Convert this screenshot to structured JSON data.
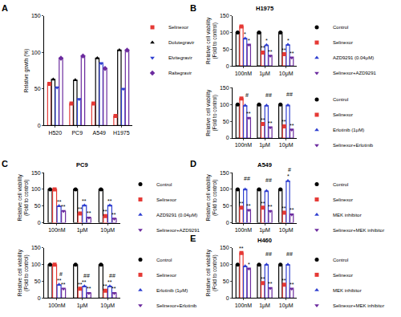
{
  "chart_data": [
    {
      "type": "bar",
      "panel": "A",
      "y_label": "Relative gowth (%)",
      "categories": [
        "H520",
        "PC9",
        "A549",
        "H1975"
      ],
      "ylim": [
        0,
        150
      ],
      "yticks": [
        0,
        50,
        100,
        150
      ],
      "grid": false,
      "series": [
        {
          "name": "Selinexor",
          "color": "#e53935",
          "marker": "square",
          "values": [
            57,
            30,
            30,
            13
          ]
        },
        {
          "name": "Dolutegravir",
          "color": "#000000",
          "marker": "triangle-up",
          "values": [
            63,
            62,
            92,
            103
          ]
        },
        {
          "name": "Elvitegravir",
          "color": "#2f3fd0",
          "marker": "triangle-down",
          "values": [
            52,
            36,
            85,
            50
          ]
        },
        {
          "name": "Raltegravir",
          "color": "#6b2a9e",
          "marker": "diamond",
          "values": [
            92,
            95,
            78,
            103
          ]
        }
      ],
      "annotations": []
    },
    {
      "type": "bar",
      "panel": "B",
      "title": "H1975",
      "y_label": "Relative cell viability\n(Fold to control)",
      "categories": [
        "100nM",
        "1μM",
        "10μM"
      ],
      "ylim": [
        0,
        150
      ],
      "yticks": [
        0,
        50,
        100,
        150
      ],
      "grid": false,
      "series": [
        {
          "name": "Control",
          "color": "#000000",
          "marker": "circle",
          "values": [
            100,
            100,
            100
          ]
        },
        {
          "name": "Selinexor",
          "color": "#e53935",
          "marker": "square",
          "values": [
            118,
            40,
            35
          ]
        },
        {
          "name": "AZD9291 (0.04μM)",
          "color": "#2f3fd0",
          "marker": "triangle-up",
          "values": [
            82,
            62,
            63
          ]
        },
        {
          "name": "Selinexor+AZD9291",
          "color": "#6b2a9e",
          "marker": "triangle-down",
          "values": [
            63,
            30,
            25
          ]
        }
      ],
      "annotations": [
        {
          "category": "100nM",
          "series": "AZD9291 (0.04μM)",
          "text": "*"
        },
        {
          "category": "100nM",
          "series": "Selinexor+AZD9291",
          "text": "*"
        },
        {
          "category": "1μM",
          "series": "Selinexor",
          "text": "**"
        },
        {
          "category": "1μM",
          "series": "AZD9291 (0.04μM)",
          "text": "*"
        },
        {
          "category": "1μM",
          "series": "Selinexor+AZD9291",
          "text": "**"
        },
        {
          "category": "10μM",
          "series": "Selinexor",
          "text": "**"
        },
        {
          "category": "10μM",
          "series": "AZD9291 (0.04μM)",
          "text": "*"
        },
        {
          "category": "10μM",
          "series": "Selinexor+AZD9291",
          "text": "**"
        }
      ]
    },
    {
      "type": "bar",
      "y_label": "Relative cell viability\n(Fold to control)",
      "categories": [
        "100nM",
        "1μM",
        "10μM"
      ],
      "ylim": [
        0,
        150
      ],
      "yticks": [
        0,
        50,
        100,
        150
      ],
      "grid": false,
      "series": [
        {
          "name": "Control",
          "color": "#000000",
          "marker": "circle",
          "values": [
            100,
            100,
            100
          ]
        },
        {
          "name": "Selinexor",
          "color": "#e53935",
          "marker": "square",
          "values": [
            118,
            42,
            35
          ]
        },
        {
          "name": "Erlotinib (1μM)",
          "color": "#2f3fd0",
          "marker": "triangle-up",
          "values": [
            97,
            97,
            98
          ]
        },
        {
          "name": "Selinexor+Erlotinib",
          "color": "#6b2a9e",
          "marker": "triangle-down",
          "values": [
            60,
            32,
            25
          ]
        }
      ],
      "annotations": [
        {
          "category": "100nM",
          "series": "Selinexor+Erlotinib",
          "text": "**"
        },
        {
          "category": "100nM",
          "between": [
            "Erlotinib (1μM)",
            "Selinexor+Erlotinib"
          ],
          "text": "#"
        },
        {
          "category": "1μM",
          "series": "Selinexor",
          "text": "**"
        },
        {
          "category": "1μM",
          "series": "Selinexor+Erlotinib",
          "text": "**"
        },
        {
          "category": "1μM",
          "between": [
            "Erlotinib (1μM)",
            "Selinexor+Erlotinib"
          ],
          "text": "##"
        },
        {
          "category": "10μM",
          "series": "Selinexor",
          "text": "**"
        },
        {
          "category": "10μM",
          "series": "Selinexor+Erlotinib",
          "text": "**"
        },
        {
          "category": "10μM",
          "between": [
            "Erlotinib (1μM)",
            "Selinexor+Erlotinib"
          ],
          "text": "##"
        }
      ]
    },
    {
      "type": "bar",
      "panel": "C",
      "title": "PC9",
      "y_label": "Relative cell viability\n(Fold to control)",
      "categories": [
        "100nM",
        "1μM",
        "10μM"
      ],
      "ylim": [
        0,
        150
      ],
      "yticks": [
        0,
        50,
        100,
        150
      ],
      "grid": false,
      "series": [
        {
          "name": "Control",
          "color": "#000000",
          "marker": "circle",
          "values": [
            100,
            100,
            100
          ]
        },
        {
          "name": "Selinexor",
          "color": "#e53935",
          "marker": "square",
          "values": [
            100,
            28,
            20
          ]
        },
        {
          "name": "AZD9291 (0.04μM)",
          "color": "#2f3fd0",
          "marker": "triangle-up",
          "values": [
            50,
            52,
            52
          ]
        },
        {
          "name": "Selinexor+AZD9291",
          "color": "#6b2a9e",
          "marker": "triangle-down",
          "values": [
            35,
            15,
            12
          ]
        }
      ],
      "annotations": [
        {
          "category": "100nM",
          "series": "AZD9291 (0.04μM)",
          "text": "**"
        },
        {
          "category": "100nM",
          "series": "Selinexor+AZD9291",
          "text": "**"
        },
        {
          "category": "1μM",
          "series": "Selinexor",
          "text": "**"
        },
        {
          "category": "1μM",
          "series": "AZD9291 (0.04μM)",
          "text": "**"
        },
        {
          "category": "1μM",
          "series": "Selinexor+AZD9291",
          "text": "**"
        },
        {
          "category": "10μM",
          "series": "Selinexor",
          "text": "**"
        },
        {
          "category": "10μM",
          "series": "AZD9291 (0.04μM)",
          "text": "**"
        },
        {
          "category": "10μM",
          "series": "Selinexor+AZD9291",
          "text": "**"
        }
      ]
    },
    {
      "type": "bar",
      "y_label": "Relative cell viability\n(Fold to control)",
      "categories": [
        "100nM",
        "1μM",
        "10μM"
      ],
      "ylim": [
        0,
        150
      ],
      "yticks": [
        0,
        50,
        100,
        150
      ],
      "grid": false,
      "series": [
        {
          "name": "Control",
          "color": "#000000",
          "marker": "circle",
          "values": [
            100,
            100,
            100
          ]
        },
        {
          "name": "Selinexor",
          "color": "#e53935",
          "marker": "square",
          "values": [
            100,
            28,
            22
          ]
        },
        {
          "name": "Erlotinib (1μM)",
          "color": "#2f3fd0",
          "marker": "triangle-up",
          "values": [
            40,
            35,
            35
          ]
        },
        {
          "name": "Selinexor+Erlotinib",
          "color": "#6b2a9e",
          "marker": "triangle-down",
          "values": [
            28,
            15,
            15
          ]
        }
      ],
      "annotations": [
        {
          "category": "100nM",
          "series": "Erlotinib (1μM)",
          "text": "**"
        },
        {
          "category": "100nM",
          "series": "Selinexor+Erlotinib",
          "text": "**"
        },
        {
          "category": "100nM",
          "between": [
            "Erlotinib (1μM)",
            "Selinexor+Erlotinib"
          ],
          "text": "#"
        },
        {
          "category": "1μM",
          "series": "Selinexor",
          "text": "**"
        },
        {
          "category": "1μM",
          "series": "Erlotinib (1μM)",
          "text": "**"
        },
        {
          "category": "1μM",
          "series": "Selinexor+Erlotinib",
          "text": "**"
        },
        {
          "category": "1μM",
          "between": [
            "Erlotinib (1μM)",
            "Selinexor+Erlotinib"
          ],
          "text": "##"
        },
        {
          "category": "10μM",
          "series": "Selinexor",
          "text": "**"
        },
        {
          "category": "10μM",
          "series": "Erlotinib (1μM)",
          "text": "**"
        },
        {
          "category": "10μM",
          "series": "Selinexor+Erlotinib",
          "text": "**"
        },
        {
          "category": "10μM",
          "between": [
            "Erlotinib (1μM)",
            "Selinexor+Erlotinib"
          ],
          "text": "##"
        }
      ]
    },
    {
      "type": "bar",
      "panel": "D",
      "title": "A549",
      "y_label": "Relative cell viability\n(Fold to control)",
      "categories": [
        "100nM",
        "1μM",
        "10μM"
      ],
      "ylim": [
        0,
        150
      ],
      "yticks": [
        0,
        50,
        100,
        150
      ],
      "grid": false,
      "series": [
        {
          "name": "Control",
          "color": "#000000",
          "marker": "circle",
          "values": [
            100,
            100,
            100
          ]
        },
        {
          "name": "Selinexor",
          "color": "#e53935",
          "marker": "square",
          "values": [
            45,
            45,
            30
          ]
        },
        {
          "name": "MEK inhibitor",
          "color": "#2f3fd0",
          "marker": "triangle-up",
          "values": [
            100,
            95,
            125
          ]
        },
        {
          "name": "Selinexor+MEK inhibitor",
          "color": "#6b2a9e",
          "marker": "triangle-down",
          "values": [
            38,
            35,
            25
          ]
        }
      ],
      "annotations": [
        {
          "category": "100nM",
          "series": "Selinexor",
          "text": "**"
        },
        {
          "category": "100nM",
          "series": "Selinexor+MEK inhibitor",
          "text": "**"
        },
        {
          "category": "100nM",
          "between": [
            "MEK inhibitor",
            "Selinexor+MEK inhibitor"
          ],
          "text": "##"
        },
        {
          "category": "1μM",
          "series": "Selinexor",
          "text": "**"
        },
        {
          "category": "1μM",
          "series": "Selinexor+MEK inhibitor",
          "text": "**"
        },
        {
          "category": "1μM",
          "between": [
            "MEK inhibitor",
            "Selinexor+MEK inhibitor"
          ],
          "text": "##"
        },
        {
          "category": "10μM",
          "series": "Selinexor",
          "text": "**"
        },
        {
          "category": "10μM",
          "series": "MEK inhibitor",
          "text": "*"
        },
        {
          "category": "10μM",
          "series": "Selinexor+MEK inhibitor",
          "text": "**"
        },
        {
          "category": "10μM",
          "between": [
            "MEK inhibitor",
            "Selinexor+MEK inhibitor"
          ],
          "text": "#"
        }
      ]
    },
    {
      "type": "bar",
      "panel": "E",
      "title": "H460",
      "y_label": "Relative cell viability\n(Fold to control)",
      "categories": [
        "100nM",
        "1μM",
        "10μM"
      ],
      "ylim": [
        0,
        150
      ],
      "yticks": [
        0,
        50,
        100,
        150
      ],
      "grid": false,
      "series": [
        {
          "name": "Control",
          "color": "#000000",
          "marker": "circle",
          "values": [
            100,
            100,
            100
          ]
        },
        {
          "name": "Selinexor",
          "color": "#e53935",
          "marker": "square",
          "values": [
            135,
            45,
            40
          ]
        },
        {
          "name": "MEK inhibitor",
          "color": "#2f3fd0",
          "marker": "triangle-up",
          "values": [
            95,
            100,
            100
          ]
        },
        {
          "name": "Selinexor+MEK inhibitor",
          "color": "#6b2a9e",
          "marker": "triangle-down",
          "values": [
            88,
            30,
            28
          ]
        }
      ],
      "annotations": [
        {
          "category": "100nM",
          "series": "Selinexor",
          "text": "**"
        },
        {
          "category": "100nM",
          "series": "Selinexor+MEK inhibitor",
          "text": "*"
        },
        {
          "category": "1μM",
          "series": "Selinexor",
          "text": "**"
        },
        {
          "category": "1μM",
          "series": "Selinexor+MEK inhibitor",
          "text": "**"
        },
        {
          "category": "1μM",
          "between": [
            "MEK inhibitor",
            "Selinexor+MEK inhibitor"
          ],
          "text": "##"
        },
        {
          "category": "10μM",
          "series": "Selinexor",
          "text": "**"
        },
        {
          "category": "10μM",
          "series": "Selinexor+MEK inhibitor",
          "text": "**"
        },
        {
          "category": "10μM",
          "between": [
            "MEK inhibitor",
            "Selinexor+MEK inhibitor"
          ],
          "text": "##"
        }
      ]
    }
  ]
}
